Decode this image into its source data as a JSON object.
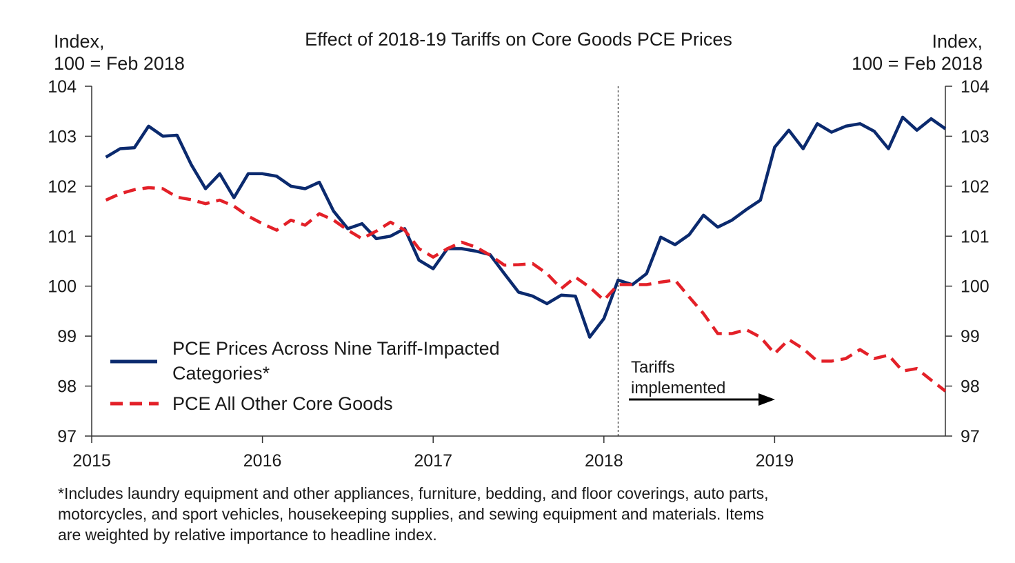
{
  "chart_data": {
    "type": "line",
    "title": "Effect of 2018-19 Tariffs on Core Goods PCE Prices",
    "ylabel_left": [
      "Index,",
      "100 = Feb 2018"
    ],
    "ylabel_right": [
      "Index,",
      "100 = Feb 2018"
    ],
    "ylim": [
      97,
      104
    ],
    "yticks": [
      "97",
      "98",
      "99",
      "100",
      "101",
      "102",
      "103",
      "104"
    ],
    "xlim": [
      "2015-01",
      "2019-12"
    ],
    "xticks": [
      "2015",
      "2016",
      "2017",
      "2018",
      "2019"
    ],
    "grid": false,
    "legend_position": "bottom-left",
    "series": [
      {
        "name": "PCE Prices Across Nine Tariff-Impacted Categories*",
        "legend_lines": [
          "PCE Prices Across Nine Tariff-Impacted",
          "Categories*"
        ],
        "color": "#0b2a6e",
        "style": "solid",
        "x": [
          "2015-02",
          "2015-03",
          "2015-04",
          "2015-05",
          "2015-06",
          "2015-07",
          "2015-08",
          "2015-09",
          "2015-10",
          "2015-11",
          "2015-12",
          "2016-01",
          "2016-02",
          "2016-03",
          "2016-04",
          "2016-05",
          "2016-06",
          "2016-07",
          "2016-08",
          "2016-09",
          "2016-10",
          "2016-11",
          "2016-12",
          "2017-01",
          "2017-02",
          "2017-03",
          "2017-04",
          "2017-05",
          "2017-06",
          "2017-07",
          "2017-08",
          "2017-09",
          "2017-10",
          "2017-11",
          "2017-12",
          "2018-01",
          "2018-02",
          "2018-03",
          "2018-04",
          "2018-05",
          "2018-06",
          "2018-07",
          "2018-08",
          "2018-09",
          "2018-10",
          "2018-11",
          "2018-12",
          "2019-01",
          "2019-02",
          "2019-03",
          "2019-04",
          "2019-05",
          "2019-06",
          "2019-07",
          "2019-08",
          "2019-09",
          "2019-10",
          "2019-11",
          "2019-12",
          "2020-01"
        ],
        "values": [
          102.58,
          102.75,
          102.77,
          103.2,
          103.0,
          103.02,
          102.43,
          101.95,
          102.25,
          101.77,
          102.25,
          102.25,
          102.2,
          102.0,
          101.95,
          102.08,
          101.5,
          101.15,
          101.25,
          100.95,
          101.0,
          101.15,
          100.52,
          100.35,
          100.75,
          100.75,
          100.7,
          100.63,
          100.25,
          99.88,
          99.8,
          99.65,
          99.82,
          99.8,
          98.98,
          99.35,
          100.12,
          100.03,
          100.25,
          100.98,
          100.83,
          101.03,
          101.42,
          101.18,
          101.32,
          101.53,
          101.72,
          102.78,
          103.12,
          102.75,
          103.25,
          103.08,
          103.2,
          103.25,
          103.1,
          102.75,
          103.38,
          103.12,
          103.35,
          103.15
        ]
      },
      {
        "name": "PCE All Other Core Goods",
        "legend_lines": [
          "PCE All Other Core Goods"
        ],
        "color": "#e32028",
        "style": "dashed",
        "x": [
          "2015-02",
          "2015-03",
          "2015-04",
          "2015-05",
          "2015-06",
          "2015-07",
          "2015-08",
          "2015-09",
          "2015-10",
          "2015-11",
          "2015-12",
          "2016-01",
          "2016-02",
          "2016-03",
          "2016-04",
          "2016-05",
          "2016-06",
          "2016-07",
          "2016-08",
          "2016-09",
          "2016-10",
          "2016-11",
          "2016-12",
          "2017-01",
          "2017-02",
          "2017-03",
          "2017-04",
          "2017-05",
          "2017-06",
          "2017-07",
          "2017-08",
          "2017-09",
          "2017-10",
          "2017-11",
          "2017-12",
          "2018-01",
          "2018-02",
          "2018-03",
          "2018-04",
          "2018-05",
          "2018-06",
          "2018-07",
          "2018-08",
          "2018-09",
          "2018-10",
          "2018-11",
          "2018-12",
          "2019-01",
          "2019-02",
          "2019-03",
          "2019-04",
          "2019-05",
          "2019-06",
          "2019-07",
          "2019-08",
          "2019-09",
          "2019-10",
          "2019-11",
          "2019-12",
          "2020-01"
        ],
        "values": [
          101.72,
          101.85,
          101.93,
          101.97,
          101.95,
          101.78,
          101.73,
          101.65,
          101.72,
          101.6,
          101.4,
          101.25,
          101.12,
          101.32,
          101.22,
          101.45,
          101.32,
          101.12,
          100.95,
          101.1,
          101.28,
          101.12,
          100.75,
          100.58,
          100.75,
          100.88,
          100.78,
          100.62,
          100.42,
          100.43,
          100.45,
          100.25,
          99.95,
          100.18,
          99.98,
          99.72,
          100.03,
          100.03,
          100.03,
          100.08,
          100.12,
          99.78,
          99.45,
          99.05,
          99.05,
          99.13,
          98.98,
          98.65,
          98.93,
          98.75,
          98.5,
          98.5,
          98.55,
          98.73,
          98.55,
          98.62,
          98.3,
          98.35,
          98.12,
          97.9
        ]
      }
    ],
    "annotations": {
      "tariffs_label_lines": [
        "Tariffs",
        "implemented"
      ],
      "tariffs_date": "2018-02"
    }
  },
  "footnote": [
    "*Includes laundry equipment and other appliances, furniture, bedding, and floor coverings, auto parts,",
    "motorcycles, and sport vehicles, housekeeping supplies, and sewing equipment and materials. Items",
    "are weighted by relative importance to headline index."
  ]
}
